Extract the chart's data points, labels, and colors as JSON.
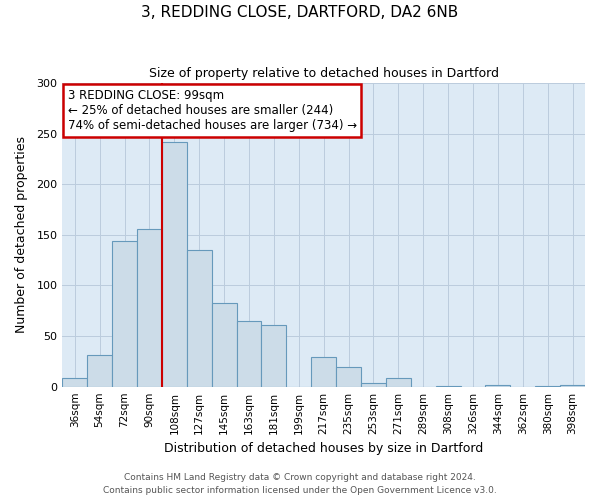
{
  "title": "3, REDDING CLOSE, DARTFORD, DA2 6NB",
  "subtitle": "Size of property relative to detached houses in Dartford",
  "xlabel": "Distribution of detached houses by size in Dartford",
  "ylabel": "Number of detached properties",
  "bar_color": "#ccdce8",
  "bar_edge_color": "#6699bb",
  "plot_bg_color": "#ddeaf5",
  "bin_labels": [
    "36sqm",
    "54sqm",
    "72sqm",
    "90sqm",
    "108sqm",
    "127sqm",
    "145sqm",
    "163sqm",
    "181sqm",
    "199sqm",
    "217sqm",
    "235sqm",
    "253sqm",
    "271sqm",
    "289sqm",
    "308sqm",
    "326sqm",
    "344sqm",
    "362sqm",
    "380sqm",
    "398sqm"
  ],
  "bar_heights": [
    9,
    31,
    144,
    156,
    242,
    135,
    83,
    65,
    61,
    0,
    29,
    19,
    4,
    9,
    0,
    1,
    0,
    2,
    0,
    1,
    2
  ],
  "ylim": [
    0,
    300
  ],
  "yticks": [
    0,
    50,
    100,
    150,
    200,
    250,
    300
  ],
  "vline_color": "#cc0000",
  "annotation_title": "3 REDDING CLOSE: 99sqm",
  "annotation_line1": "← 25% of detached houses are smaller (244)",
  "annotation_line2": "74% of semi-detached houses are larger (734) →",
  "annotation_box_color": "#ffffff",
  "annotation_box_edge": "#cc0000",
  "footer1": "Contains HM Land Registry data © Crown copyright and database right 2024.",
  "footer2": "Contains public sector information licensed under the Open Government Licence v3.0.",
  "background_color": "#ffffff",
  "grid_color": "#bbccdd"
}
